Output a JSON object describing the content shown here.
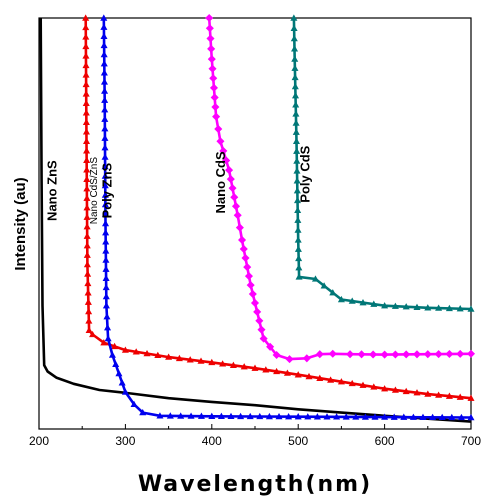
{
  "chart_data": {
    "type": "line",
    "title": "",
    "xlabel": "Wavelength(nm)",
    "ylabel": "Intensity (au)",
    "xlim": [
      200,
      700
    ],
    "ylim": [
      0,
      100
    ],
    "x_ticks": [
      "200",
      "300",
      "400",
      "500",
      "600",
      "700"
    ],
    "grid": false,
    "legend": "none",
    "series": [
      {
        "name": "Nano ZnS",
        "color": "#000000",
        "marker": "none",
        "label_at": [
          220,
          58
        ],
        "points": [
          [
            202,
            100
          ],
          [
            203,
            60
          ],
          [
            204,
            30
          ],
          [
            206,
            15.5
          ],
          [
            210,
            14
          ],
          [
            220,
            12.5
          ],
          [
            240,
            11
          ],
          [
            270,
            9.5
          ],
          [
            300,
            8.8
          ],
          [
            350,
            7.5
          ],
          [
            400,
            6.6
          ],
          [
            450,
            5.8
          ],
          [
            500,
            4.8
          ],
          [
            550,
            4
          ],
          [
            600,
            3.2
          ],
          [
            650,
            2.5
          ],
          [
            700,
            1.8
          ]
        ]
      },
      {
        "name": "Nano CdS/ZnS",
        "color": "#ee0000",
        "marker": "triangle",
        "label_at": [
          267,
          58
        ],
        "points": [
          [
            254,
            100
          ],
          [
            255,
            70
          ],
          [
            256,
            40
          ],
          [
            258,
            24
          ],
          [
            262,
            23
          ],
          [
            275,
            21
          ],
          [
            300,
            19.2
          ],
          [
            350,
            17.5
          ],
          [
            400,
            16.2
          ],
          [
            450,
            14.8
          ],
          [
            500,
            13.2
          ],
          [
            550,
            11.5
          ],
          [
            600,
            9.8
          ],
          [
            650,
            8.5
          ],
          [
            700,
            7.5
          ]
        ]
      },
      {
        "name": "Poly ZnS",
        "color": "#0000ee",
        "marker": "triangle",
        "label_at": [
          284,
          58
        ],
        "points": [
          [
            275,
            100
          ],
          [
            276,
            80
          ],
          [
            277,
            50
          ],
          [
            278,
            30
          ],
          [
            280,
            22
          ],
          [
            285,
            18
          ],
          [
            300,
            9
          ],
          [
            310,
            6
          ],
          [
            320,
            4
          ],
          [
            340,
            3.2
          ],
          [
            400,
            3.1
          ],
          [
            500,
            3
          ],
          [
            600,
            2.9
          ],
          [
            700,
            2.8
          ]
        ]
      },
      {
        "name": "Nano CdS",
        "color": "#ff00ff",
        "marker": "diamond",
        "label_at": [
          415,
          60
        ],
        "points": [
          [
            397,
            100
          ],
          [
            400,
            90
          ],
          [
            405,
            76
          ],
          [
            410,
            70
          ],
          [
            420,
            63
          ],
          [
            430,
            52
          ],
          [
            435,
            46
          ],
          [
            445,
            35
          ],
          [
            460,
            22
          ],
          [
            475,
            18
          ],
          [
            490,
            17
          ],
          [
            510,
            17.2
          ],
          [
            525,
            18.2
          ],
          [
            540,
            18.3
          ],
          [
            560,
            18.2
          ],
          [
            600,
            18.1
          ],
          [
            650,
            18.2
          ],
          [
            700,
            18.3
          ]
        ]
      },
      {
        "name": "Poly CdS",
        "color": "#007777",
        "marker": "triangle",
        "label_at": [
          513,
          62
        ],
        "points": [
          [
            495,
            100
          ],
          [
            496,
            90
          ],
          [
            498,
            70
          ],
          [
            500,
            46
          ],
          [
            501,
            37
          ],
          [
            520,
            36.5
          ],
          [
            550,
            31.5
          ],
          [
            600,
            30
          ],
          [
            650,
            29.5
          ],
          [
            700,
            29.2
          ]
        ]
      }
    ]
  }
}
